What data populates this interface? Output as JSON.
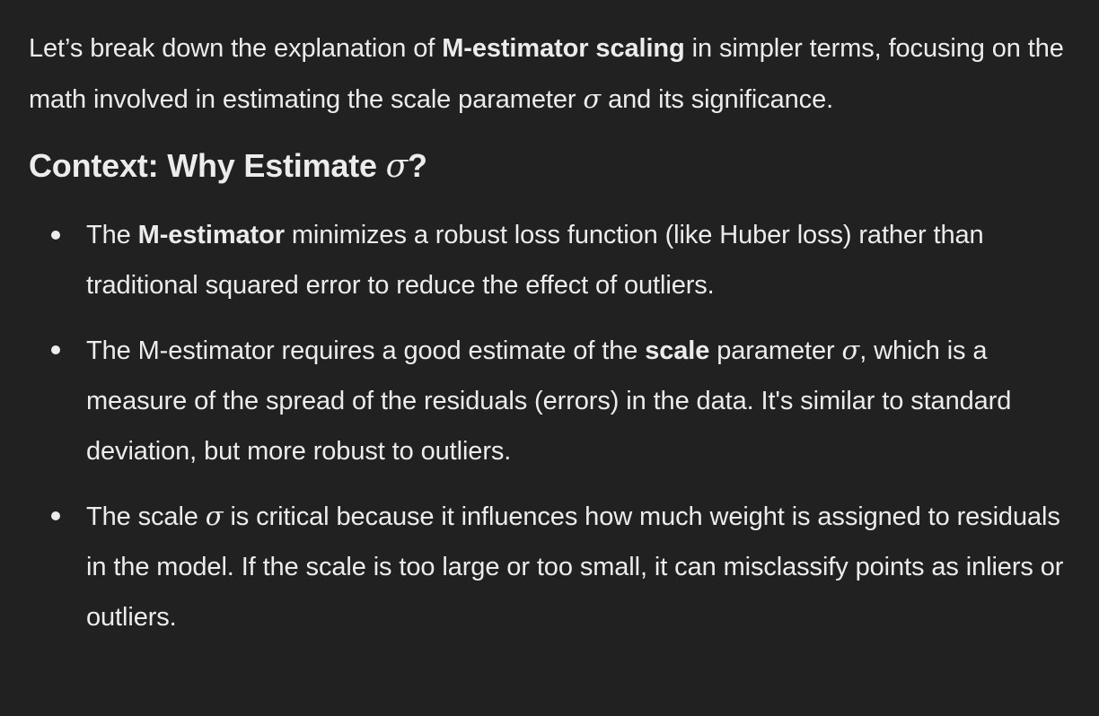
{
  "intro": {
    "part1": "Let’s break down the explanation of ",
    "bold": "M-estimator scaling",
    "part2": " in simpler terms, focusing on the math involved in estimating the scale parameter ",
    "sigma": "σ",
    "part3": " and its significance."
  },
  "heading": {
    "text": "Context: Why Estimate ",
    "sigma": "σ",
    "end": "?"
  },
  "bullets": [
    {
      "pre": "The ",
      "bold": "M-estimator",
      "post": " minimizes a robust loss function (like Huber loss) rather than traditional squared error to reduce the effect of outliers."
    },
    {
      "pre": "The M-estimator requires a good estimate of the ",
      "bold": "scale",
      "mid": " parameter ",
      "sigma": "σ",
      "post": ", which is a measure of the spread of the residuals (errors) in the data. It's similar to standard deviation, but more robust to outliers."
    },
    {
      "pre": "The scale ",
      "sigma": "σ",
      "post": " is critical because it influences how much weight is assigned to residuals in the model. If the scale is too large or too small, it can misclassify points as inliers or outliers."
    }
  ]
}
